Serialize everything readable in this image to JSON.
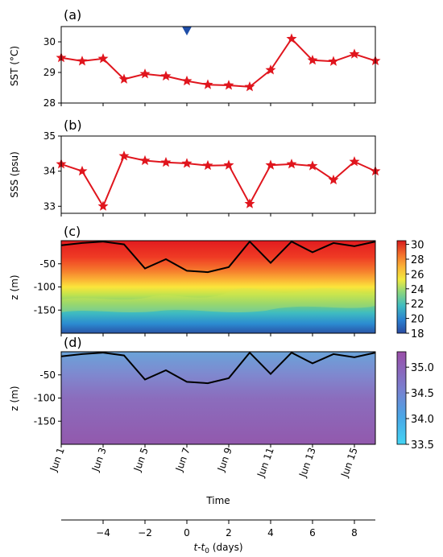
{
  "chart_data": [
    {
      "panel_label": "(a)",
      "type": "line",
      "ylabel": "SST (°C)",
      "ylim": [
        28,
        30.5
      ],
      "yticks": [
        "28",
        "29",
        "30"
      ],
      "x_days": [
        -6,
        -5,
        -4,
        -3,
        -2,
        -1,
        0,
        1,
        2,
        3,
        4,
        5,
        6,
        7,
        8,
        9
      ],
      "values": [
        29.48,
        29.37,
        29.45,
        28.78,
        28.95,
        28.88,
        28.72,
        28.6,
        28.58,
        28.53,
        29.08,
        30.1,
        29.4,
        29.36,
        29.6,
        29.38
      ],
      "line_color": "#e0151d",
      "marker": "star",
      "triangle_marker_x_days": 0,
      "triangle_color": "#1f4ea8"
    },
    {
      "panel_label": "(b)",
      "type": "line",
      "ylabel": "SSS (psu)",
      "ylim": [
        32.8,
        35
      ],
      "yticks": [
        "33",
        "34",
        "35"
      ],
      "x_days": [
        -6,
        -5,
        -4,
        -3,
        -2,
        -1,
        0,
        1,
        2,
        3,
        4,
        5,
        6,
        7,
        8,
        9
      ],
      "values": [
        34.2,
        34.0,
        33.0,
        34.43,
        34.3,
        34.25,
        34.22,
        34.16,
        34.17,
        33.07,
        34.17,
        34.2,
        34.15,
        33.75,
        34.27,
        34.0
      ],
      "line_color": "#e0151d",
      "marker": "star"
    },
    {
      "panel_label": "(c)",
      "type": "heatmap",
      "ylabel": "z (m)",
      "ylim": [
        -200,
        0
      ],
      "yticks": [
        "-50",
        "-100",
        "-150"
      ],
      "colorbar_ticks": [
        "18",
        "20",
        "22",
        "24",
        "26",
        "28",
        "30"
      ],
      "colorbar_range": [
        18,
        30.5
      ],
      "colormap": "Spectral_r",
      "description_depth_profile": "warm (~29-30) near surface, cooling to ~18 at -200 m",
      "mld_days": [
        -6,
        -5,
        -4,
        -3,
        -2,
        -1,
        0,
        1,
        2,
        3,
        4,
        5,
        6,
        7,
        8,
        9
      ],
      "mld_depth": [
        -10,
        -5,
        -2,
        -8,
        -60,
        -40,
        -65,
        -68,
        -57,
        -2,
        -48,
        -2,
        -25,
        -5,
        -12,
        -2
      ],
      "mld_color": "#000000"
    },
    {
      "panel_label": "(d)",
      "type": "heatmap",
      "ylabel": "z (m)",
      "ylim": [
        -200,
        0
      ],
      "yticks": [
        "-50",
        "-100",
        "-150"
      ],
      "colorbar_ticks": [
        "33.5",
        "34.0",
        "34.5",
        "35.0"
      ],
      "colorbar_range": [
        33.5,
        35.3
      ],
      "colormap": "cyan-to-purple",
      "mld_days": [
        -6,
        -5,
        -4,
        -3,
        -2,
        -1,
        0,
        1,
        2,
        3,
        4,
        5,
        6,
        7,
        8,
        9
      ],
      "mld_depth": [
        -10,
        -5,
        -2,
        -8,
        -60,
        -40,
        -65,
        -68,
        -57,
        -2,
        -48,
        -2,
        -25,
        -5,
        -12,
        -2
      ],
      "mld_color": "#000000"
    }
  ],
  "shared_x": {
    "date_tick_labels": [
      "Jun 1",
      "Jun 3",
      "Jun 5",
      "Jun 7",
      "Jun 9",
      "Jun 11",
      "Jun 13",
      "Jun 15"
    ],
    "date_tick_days": [
      -6,
      -4,
      -2,
      0,
      2,
      4,
      6,
      8
    ],
    "xlabel_time": "Time",
    "xlim_days": [
      -6,
      9
    ],
    "days_tick_labels": [
      "−4",
      "−2",
      "0",
      "2",
      "4",
      "6",
      "8"
    ],
    "days_tick_values": [
      -4,
      -2,
      0,
      2,
      4,
      6,
      8
    ],
    "xlabel_days": "t-t0 (days)"
  }
}
